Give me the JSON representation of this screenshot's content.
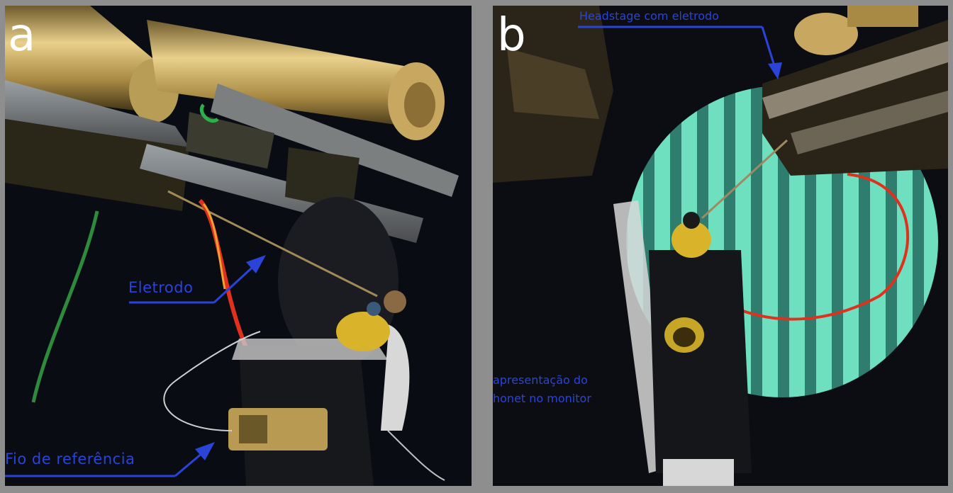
{
  "panels": {
    "a": {
      "label": "a",
      "annotations": {
        "electrode": "Eletrodo",
        "reference_wire": "Fio de referência"
      }
    },
    "b": {
      "label": "b",
      "annotations": {
        "headstage": "Headstage com eletrodo",
        "monitor_line1": "apresentação do",
        "monitor_line2": "honet no monitor"
      }
    }
  },
  "colors": {
    "annotation": "#2a44d8",
    "background": "#8e8e8e",
    "stimulus": "#5fd3b0",
    "wire_red": "#e0301e"
  }
}
